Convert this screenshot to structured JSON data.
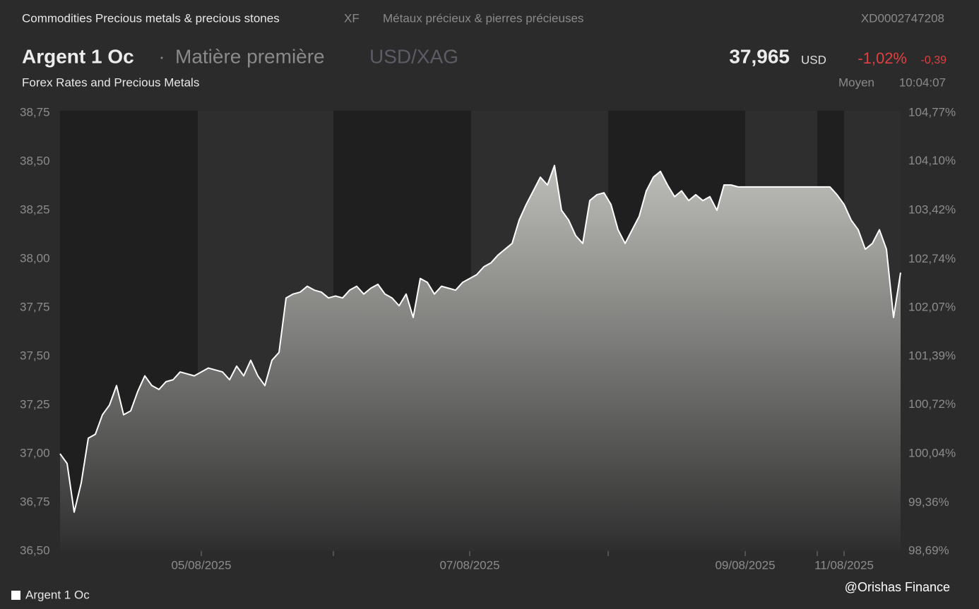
{
  "header": {
    "category": "Commodities Precious metals & precious stones",
    "code": "XF",
    "category_fr": "Métaux précieux & pierres précieuses",
    "isin": "XD0002747208",
    "name": "Argent 1 Oc",
    "asset_type": "Matière première",
    "pair": "USD/XAG",
    "price": "37,965",
    "currency": "USD",
    "change_pct": "-1,02%",
    "change": "-0,39",
    "source": "Forex Rates and Precious Metals",
    "price_type": "Moyen",
    "time": "10:04:07"
  },
  "watermark": "@Orishas Finance",
  "chart_data": {
    "type": "area",
    "categories": [
      null,
      null,
      null,
      null,
      null,
      null,
      null,
      null,
      null,
      null,
      null,
      null,
      null,
      null,
      null,
      null,
      null,
      null,
      null,
      null,
      "05/08/2025",
      null,
      null,
      null,
      null,
      null,
      null,
      null,
      null,
      null,
      null,
      null,
      null,
      null,
      null,
      null,
      null,
      null,
      null,
      null,
      null,
      null,
      null,
      null,
      null,
      null,
      null,
      null,
      null,
      null,
      null,
      null,
      null,
      null,
      null,
      null,
      null,
      null,
      "07/08/2025",
      null,
      null,
      null,
      null,
      null,
      null,
      null,
      null,
      null,
      null,
      null,
      null,
      null,
      null,
      null,
      null,
      null,
      null,
      null,
      null,
      null,
      null,
      null,
      null,
      null,
      null,
      null,
      null,
      null,
      null,
      null,
      null,
      null,
      null,
      null,
      null,
      null,
      null,
      "09/08/2025",
      null,
      null,
      null,
      null,
      null,
      null,
      null,
      null,
      null,
      null,
      null,
      null,
      null,
      "11/08/2025",
      null,
      null,
      null,
      null,
      null,
      null,
      null,
      null
    ],
    "series": [
      {
        "name": "Argent 1 Oc",
        "color": "#ffffff",
        "values": [
          37.0,
          36.95,
          36.7,
          36.85,
          37.08,
          37.1,
          37.2,
          37.25,
          37.35,
          37.2,
          37.22,
          37.32,
          37.4,
          37.35,
          37.33,
          37.37,
          37.38,
          37.42,
          37.41,
          37.4,
          37.42,
          37.44,
          37.43,
          37.42,
          37.38,
          37.45,
          37.4,
          37.48,
          37.4,
          37.35,
          37.48,
          37.52,
          37.8,
          37.82,
          37.83,
          37.86,
          37.84,
          37.83,
          37.8,
          37.81,
          37.8,
          37.84,
          37.86,
          37.82,
          37.85,
          37.87,
          37.82,
          37.8,
          37.76,
          37.82,
          37.7,
          37.9,
          37.88,
          37.82,
          37.86,
          37.85,
          37.84,
          37.88,
          37.9,
          37.92,
          37.96,
          37.98,
          38.02,
          38.05,
          38.08,
          38.2,
          38.28,
          38.35,
          38.42,
          38.38,
          38.48,
          38.25,
          38.2,
          38.12,
          38.08,
          38.3,
          38.33,
          38.34,
          38.28,
          38.15,
          38.08,
          38.15,
          38.22,
          38.35,
          38.42,
          38.45,
          38.38,
          38.32,
          38.35,
          38.3,
          38.33,
          38.3,
          38.32,
          38.25,
          38.38,
          38.38,
          38.37,
          38.37,
          38.37,
          38.37,
          38.37,
          38.37,
          38.37,
          38.37,
          38.37,
          38.37,
          38.37,
          38.37,
          38.37,
          38.37,
          38.33,
          38.28,
          38.2,
          38.15,
          38.05,
          38.08,
          38.15,
          38.05,
          37.7,
          37.93
        ]
      }
    ],
    "ylim": [
      36.5,
      38.75
    ],
    "yticks": [
      {
        "value": 36.5,
        "label": "36,50"
      },
      {
        "value": 36.75,
        "label": "36,75"
      },
      {
        "value": 37,
        "label": "37,00"
      },
      {
        "value": 37.25,
        "label": "37,25"
      },
      {
        "value": 37.5,
        "label": "37,50"
      },
      {
        "value": 37.75,
        "label": "37,75"
      },
      {
        "value": 38,
        "label": "38,00"
      },
      {
        "value": 38.25,
        "label": "38,25"
      },
      {
        "value": 38.5,
        "label": "38,50"
      },
      {
        "value": 38.75,
        "label": "38,75"
      }
    ],
    "y2lim": [
      98.69,
      104.77
    ],
    "y2ticks": [
      {
        "value": 98.69,
        "label": "98,69%"
      },
      {
        "value": 99.36,
        "label": "99,36%"
      },
      {
        "value": 100.04,
        "label": "100,04%"
      },
      {
        "value": 100.72,
        "label": "100,72%"
      },
      {
        "value": 101.39,
        "label": "101,39%"
      },
      {
        "value": 102.07,
        "label": "102,07%"
      },
      {
        "value": 102.74,
        "label": "102,74%"
      },
      {
        "value": 103.42,
        "label": "103,42%"
      },
      {
        "value": 104.1,
        "label": "104,10%"
      },
      {
        "value": 104.77,
        "label": "104,77%"
      }
    ],
    "grid": false
  }
}
